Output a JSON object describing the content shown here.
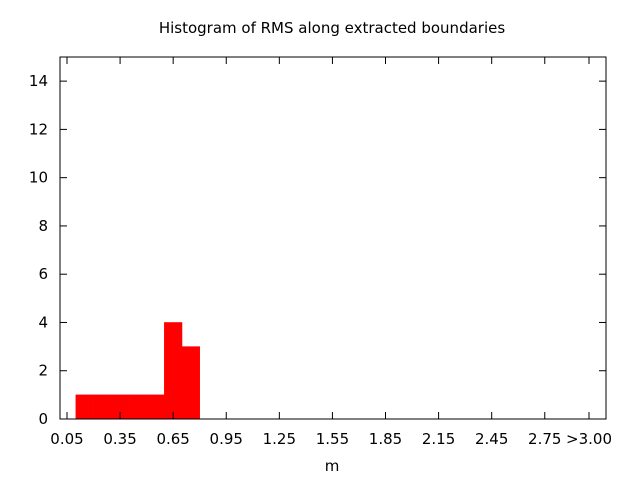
{
  "chart_data": {
    "type": "bar",
    "title": "Histogram of RMS along extracted boundaries",
    "xlabel": "m",
    "ylabel": "",
    "bin_width": 0.1,
    "xlim": [
      0.0,
      3.05
    ],
    "ylim": [
      0,
      15
    ],
    "x_ticks": [
      {
        "value": 0.05,
        "label": "0.05"
      },
      {
        "value": 0.35,
        "label": "0.35"
      },
      {
        "value": 0.65,
        "label": "0.65"
      },
      {
        "value": 0.95,
        "label": "0.95"
      },
      {
        "value": 1.25,
        "label": "1.25"
      },
      {
        "value": 1.55,
        "label": "1.55"
      },
      {
        "value": 1.85,
        "label": "1.85"
      },
      {
        "value": 2.15,
        "label": "2.15"
      },
      {
        "value": 2.45,
        "label": "2.45"
      },
      {
        "value": 2.75,
        "label": "2.75"
      },
      {
        "value": 3.0,
        "label": ">3.00"
      }
    ],
    "y_ticks": [
      0,
      2,
      4,
      6,
      8,
      10,
      12,
      14
    ],
    "bins": [
      {
        "x": 0.15,
        "count": 1
      },
      {
        "x": 0.25,
        "count": 1
      },
      {
        "x": 0.35,
        "count": 1
      },
      {
        "x": 0.45,
        "count": 1
      },
      {
        "x": 0.55,
        "count": 1
      },
      {
        "x": 0.65,
        "count": 4
      },
      {
        "x": 0.75,
        "count": 3
      }
    ],
    "bar_color": "#ff0000",
    "grid": false,
    "legend": "none"
  }
}
